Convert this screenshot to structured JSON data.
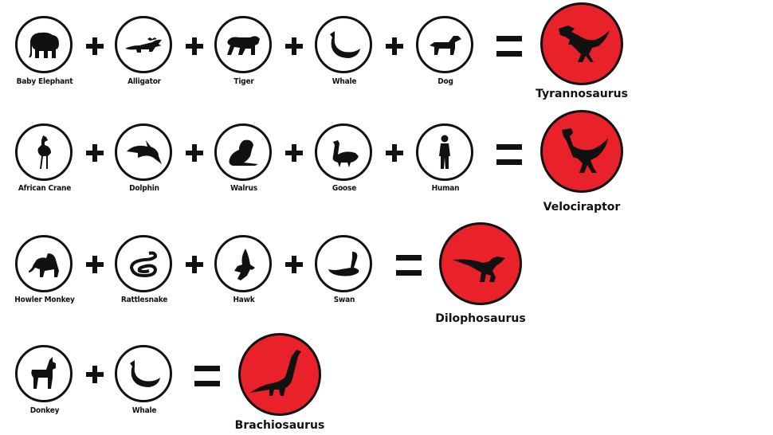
{
  "colors": {
    "dino_fill": "#e8212a",
    "ink": "#111111"
  },
  "rows": [
    {
      "animals": [
        {
          "label": "Baby Elephant",
          "icon": "elephant-icon"
        },
        {
          "label": "Alligator",
          "icon": "alligator-icon"
        },
        {
          "label": "Tiger",
          "icon": "tiger-icon"
        },
        {
          "label": "Whale",
          "icon": "whale-icon"
        },
        {
          "label": "Dog",
          "icon": "dog-icon"
        }
      ],
      "result": {
        "label": "Tyrannosaurus",
        "icon": "tyrannosaurus-icon"
      }
    },
    {
      "animals": [
        {
          "label": "African Crane",
          "icon": "crane-icon"
        },
        {
          "label": "Dolphin",
          "icon": "dolphin-icon"
        },
        {
          "label": "Walrus",
          "icon": "walrus-icon"
        },
        {
          "label": "Goose",
          "icon": "goose-icon"
        },
        {
          "label": "Human",
          "icon": "human-icon"
        }
      ],
      "result": {
        "label": "Velociraptor",
        "icon": "velociraptor-icon"
      }
    },
    {
      "animals": [
        {
          "label": "Howler Monkey",
          "icon": "monkey-icon"
        },
        {
          "label": "Rattlesnake",
          "icon": "snake-icon"
        },
        {
          "label": "Hawk",
          "icon": "hawk-icon"
        },
        {
          "label": "Swan",
          "icon": "swan-icon"
        }
      ],
      "result": {
        "label": "Dilophosaurus",
        "icon": "dilophosaurus-icon"
      }
    },
    {
      "animals": [
        {
          "label": "Donkey",
          "icon": "donkey-icon"
        },
        {
          "label": "Whale",
          "icon": "whale-icon"
        }
      ],
      "result": {
        "label": "Brachiosaurus",
        "icon": "brachiosaurus-icon"
      }
    }
  ]
}
